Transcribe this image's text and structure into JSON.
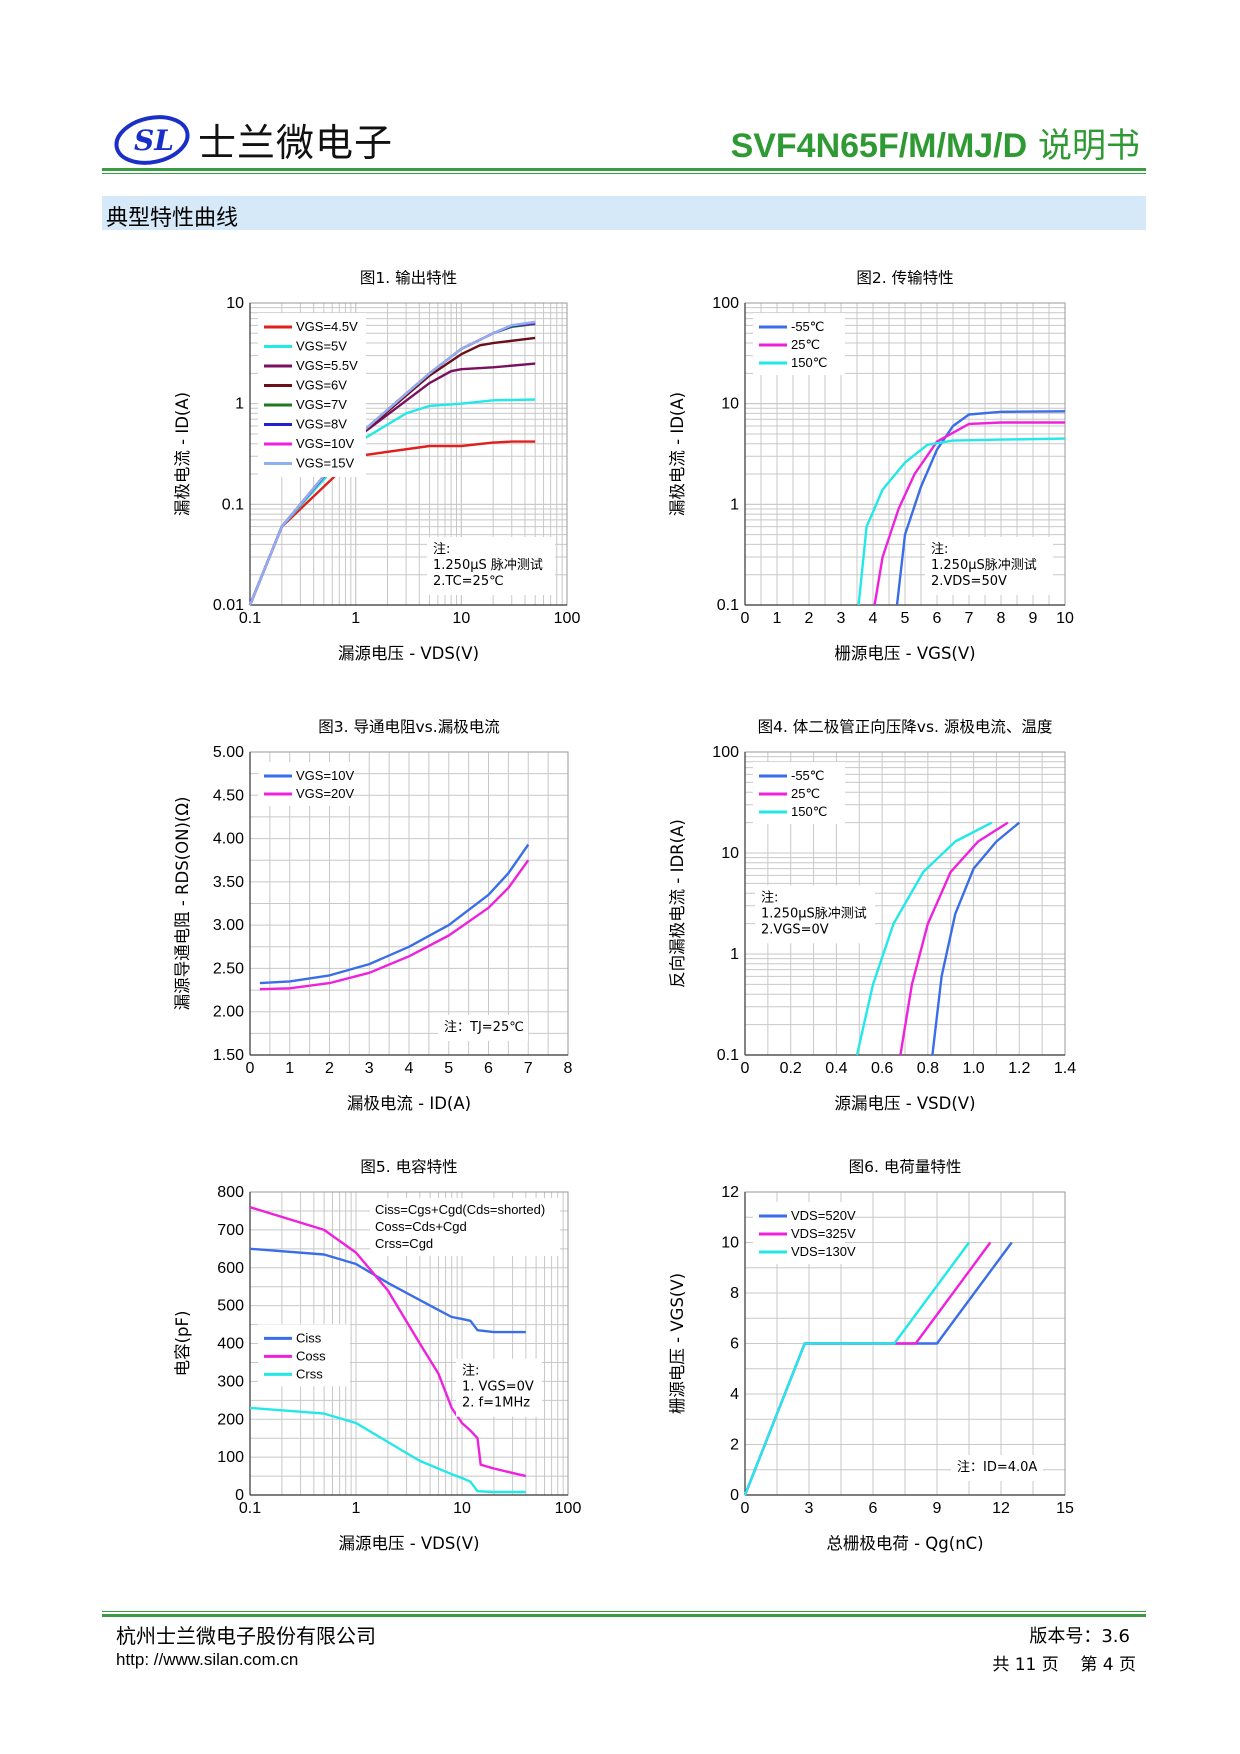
{
  "header": {
    "company_name": "士兰微电子",
    "logo_text": "SL",
    "doc_title_model": "SVF4N65F/M/MJ/D",
    "doc_title_suffix": " 说明书",
    "accent_color": "#2f9a34"
  },
  "section": {
    "title": "典型特性曲线"
  },
  "footer": {
    "company": "杭州士兰微电子股份有限公司",
    "url": "http: //www.silan.com.cn",
    "version": "版本号：3.6",
    "page": "共 11 页    第 4 页"
  },
  "chart_data": [
    {
      "type": "line",
      "title": "图1. 输出特性",
      "xlabel": "漏源电压 - VDS(V)",
      "ylabel": "漏极电流 - ID(A)",
      "xscale": "log",
      "yscale": "log",
      "xlim": [
        0.1,
        100
      ],
      "ylim": [
        0.01,
        10
      ],
      "xticks": [
        "0.1",
        "1",
        "10",
        "100"
      ],
      "yticks": [
        "0.01",
        "0.1",
        "1",
        "10"
      ],
      "legend": "top-left",
      "note": [
        "注:",
        "1.250μS 脉冲测试",
        "2.TC=25℃"
      ],
      "series": [
        {
          "name": "VGS=4.5V",
          "color": "#e0201c",
          "x": [
            0.1,
            0.2,
            1,
            5,
            10,
            20,
            30,
            50
          ],
          "y": [
            0.01,
            0.06,
            0.3,
            0.38,
            0.38,
            0.41,
            0.42,
            0.42
          ]
        },
        {
          "name": "VGS=5V",
          "color": "#22e8e8",
          "x": [
            0.1,
            0.2,
            1,
            3,
            5,
            10,
            20,
            50
          ],
          "y": [
            0.01,
            0.06,
            0.4,
            0.8,
            0.95,
            1.0,
            1.08,
            1.1
          ]
        },
        {
          "name": "VGS=5.5V",
          "color": "#7a1060",
          "x": [
            0.1,
            0.2,
            1,
            5,
            8,
            10,
            20,
            50
          ],
          "y": [
            0.01,
            0.06,
            0.45,
            1.6,
            2.1,
            2.2,
            2.3,
            2.5
          ]
        },
        {
          "name": "VGS=6V",
          "color": "#6b0f1a",
          "x": [
            0.1,
            0.2,
            1,
            5,
            10,
            15,
            20,
            50
          ],
          "y": [
            0.01,
            0.06,
            0.45,
            1.9,
            3.1,
            3.8,
            4.0,
            4.5
          ]
        },
        {
          "name": "VGS=7V",
          "color": "#1f7a1f",
          "x": [
            0.1,
            0.2,
            1,
            5,
            10,
            20,
            30,
            50
          ],
          "y": [
            0.01,
            0.06,
            0.46,
            2.0,
            3.5,
            5.0,
            5.8,
            6.2
          ]
        },
        {
          "name": "VGS=8V",
          "color": "#2222cc",
          "x": [
            0.1,
            0.2,
            1,
            5,
            10,
            20,
            30,
            50
          ],
          "y": [
            0.01,
            0.06,
            0.46,
            2.0,
            3.5,
            5.0,
            5.9,
            6.3
          ]
        },
        {
          "name": "VGS=10V",
          "color": "#ee22dd",
          "x": [
            0.1,
            0.2,
            1,
            5,
            10,
            20,
            30,
            50
          ],
          "y": [
            0.01,
            0.06,
            0.46,
            2.0,
            3.5,
            5.0,
            6.0,
            6.4
          ]
        },
        {
          "name": "VGS=15V",
          "color": "#8fb0f0",
          "x": [
            0.1,
            0.2,
            1,
            5,
            10,
            20,
            30,
            50
          ],
          "y": [
            0.01,
            0.06,
            0.46,
            2.0,
            3.5,
            5.0,
            6.0,
            6.5
          ]
        }
      ]
    },
    {
      "type": "line",
      "title": "图2. 传输特性",
      "xlabel": "栅源电压 - VGS(V)",
      "ylabel": "漏极电流 - ID(A)",
      "yscale": "log",
      "xlim": [
        0,
        10
      ],
      "ylim": [
        0.1,
        100
      ],
      "xticks": [
        "0",
        "1",
        "2",
        "3",
        "4",
        "5",
        "6",
        "7",
        "8",
        "9",
        "10"
      ],
      "yticks": [
        "0.1",
        "1",
        "10",
        "100"
      ],
      "legend": "top-left",
      "note": [
        "注:",
        "1.250μS脉冲测试",
        "2.VDS=50V"
      ],
      "series": [
        {
          "name": "-55℃",
          "color": "#3a6ee8",
          "x": [
            4.75,
            5.0,
            5.5,
            6.0,
            6.5,
            7.0,
            8.0,
            10.0
          ],
          "y": [
            0.1,
            0.5,
            1.5,
            3.5,
            6.0,
            7.8,
            8.3,
            8.4
          ]
        },
        {
          "name": "25℃",
          "color": "#ee22dd",
          "x": [
            4.05,
            4.3,
            4.8,
            5.3,
            6.0,
            7.0,
            8.0,
            10.0
          ],
          "y": [
            0.1,
            0.3,
            0.9,
            2.0,
            4.2,
            6.3,
            6.5,
            6.5
          ]
        },
        {
          "name": "150℃",
          "color": "#22e8e8",
          "x": [
            3.55,
            3.8,
            4.3,
            5.0,
            5.7,
            6.5,
            8.0,
            10.0
          ],
          "y": [
            0.1,
            0.6,
            1.4,
            2.6,
            3.9,
            4.3,
            4.4,
            4.5
          ]
        }
      ]
    },
    {
      "type": "line",
      "title": "图3. 导通电阻vs.漏极电流",
      "xlabel": "漏极电流 - ID(A)",
      "ylabel": "漏源导通电阻 - RDS(ON)(Ω)",
      "xlim": [
        0,
        8
      ],
      "ylim": [
        1.5,
        5.0
      ],
      "xticks": [
        "0",
        "1",
        "2",
        "3",
        "4",
        "5",
        "6",
        "7",
        "8"
      ],
      "yticks": [
        "1.50",
        "2.00",
        "2.50",
        "3.00",
        "3.50",
        "4.00",
        "4.50",
        "5.00"
      ],
      "legend": "top-left",
      "note": [
        "注：TJ=25℃"
      ],
      "series": [
        {
          "name": "VGS=10V",
          "color": "#3a6ee8",
          "x": [
            0.25,
            1.0,
            2.0,
            3.0,
            4.0,
            5.0,
            6.0,
            6.5,
            7.0
          ],
          "y": [
            2.33,
            2.35,
            2.42,
            2.55,
            2.75,
            3.0,
            3.35,
            3.6,
            3.93
          ]
        },
        {
          "name": "VGS=20V",
          "color": "#ee22dd",
          "x": [
            0.25,
            1.0,
            2.0,
            3.0,
            4.0,
            5.0,
            6.0,
            6.5,
            7.0
          ],
          "y": [
            2.26,
            2.27,
            2.33,
            2.45,
            2.64,
            2.88,
            3.2,
            3.43,
            3.75
          ]
        }
      ]
    },
    {
      "type": "line",
      "title": "图4. 体二极管正向压降vs. 源极电流、温度",
      "xlabel": "源漏电压 - VSD(V)",
      "ylabel": "反向漏极电流 - IDR(A)",
      "yscale": "log",
      "xlim": [
        0,
        1.4
      ],
      "ylim": [
        0.1,
        100
      ],
      "xticks": [
        "0",
        "0.2",
        "0.4",
        "0.6",
        "0.8",
        "1.0",
        "1.2",
        "1.4"
      ],
      "yticks": [
        "0.1",
        "1",
        "10",
        "100"
      ],
      "legend": "top-left",
      "note": [
        "注:",
        "1.250μS脉冲测试",
        "2.VGS=0V"
      ],
      "series": [
        {
          "name": "-55℃",
          "color": "#3a6ee8",
          "x": [
            0.82,
            0.86,
            0.92,
            1.0,
            1.1,
            1.2
          ],
          "y": [
            0.1,
            0.6,
            2.5,
            7.0,
            13.0,
            20.0
          ]
        },
        {
          "name": "25℃",
          "color": "#ee22dd",
          "x": [
            0.68,
            0.73,
            0.8,
            0.9,
            1.02,
            1.15
          ],
          "y": [
            0.1,
            0.5,
            2.0,
            6.5,
            13.0,
            20.0
          ]
        },
        {
          "name": "150℃",
          "color": "#22e8e8",
          "x": [
            0.49,
            0.56,
            0.65,
            0.78,
            0.92,
            1.08
          ],
          "y": [
            0.1,
            0.5,
            2.0,
            6.5,
            13.0,
            20.0
          ]
        }
      ]
    },
    {
      "type": "line",
      "title": "图5. 电容特性",
      "xlabel": "漏源电压 - VDS(V)",
      "ylabel": "电容(pF)",
      "xscale": "log",
      "xlim": [
        0.1,
        100
      ],
      "ylim": [
        0,
        800
      ],
      "xticks": [
        "0.1",
        "1",
        "10",
        "100"
      ],
      "yticks": [
        "0",
        "100",
        "200",
        "300",
        "400",
        "500",
        "600",
        "700",
        "800"
      ],
      "legend": "middle-left",
      "annotation": [
        "Ciss=Cgs+Cgd(Cds=shorted)",
        "Coss=Cds+Cgd",
        "Crss=Cgd"
      ],
      "note": [
        "注:",
        "1. VGS=0V",
        "2. f=1MHz"
      ],
      "series": [
        {
          "name": "Ciss",
          "color": "#3a6ee8",
          "x": [
            0.1,
            0.5,
            1,
            2,
            5,
            8,
            10,
            12,
            14,
            20,
            40
          ],
          "y": [
            650,
            635,
            610,
            560,
            500,
            470,
            465,
            460,
            435,
            430,
            430
          ]
        },
        {
          "name": "Coss",
          "color": "#ee22dd",
          "x": [
            0.1,
            0.5,
            1,
            2,
            4,
            6,
            8,
            10,
            12,
            14,
            15,
            20,
            40
          ],
          "y": [
            760,
            700,
            640,
            540,
            400,
            320,
            230,
            190,
            170,
            150,
            80,
            70,
            50
          ]
        },
        {
          "name": "Crss",
          "color": "#22e8e8",
          "x": [
            0.1,
            0.5,
            1,
            2,
            4,
            8,
            10,
            12,
            14,
            20,
            40
          ],
          "y": [
            230,
            215,
            190,
            140,
            90,
            55,
            45,
            35,
            10,
            8,
            8
          ]
        }
      ]
    },
    {
      "type": "line",
      "title": "图6. 电荷量特性",
      "xlabel": "总栅极电荷 - Qg(nC)",
      "ylabel": "栅源电压 - VGS(V)",
      "xlim": [
        0,
        15
      ],
      "ylim": [
        0,
        12
      ],
      "xticks": [
        "0",
        "3",
        "6",
        "9",
        "12",
        "15"
      ],
      "yticks": [
        "0",
        "2",
        "4",
        "6",
        "8",
        "10",
        "12"
      ],
      "legend": "top-left",
      "note": [
        "注：ID=4.0A"
      ],
      "series": [
        {
          "name": "VDS=520V",
          "color": "#3a6ee8",
          "x": [
            0,
            2.8,
            9.0,
            12.5
          ],
          "y": [
            0,
            6,
            6,
            10
          ]
        },
        {
          "name": "VDS=325V",
          "color": "#ee22dd",
          "x": [
            0,
            2.8,
            8.0,
            11.5
          ],
          "y": [
            0,
            6,
            6,
            10
          ]
        },
        {
          "name": "VDS=130V",
          "color": "#22e8e8",
          "x": [
            0,
            2.8,
            7.0,
            10.5
          ],
          "y": [
            0,
            6,
            6,
            10
          ]
        }
      ]
    }
  ]
}
